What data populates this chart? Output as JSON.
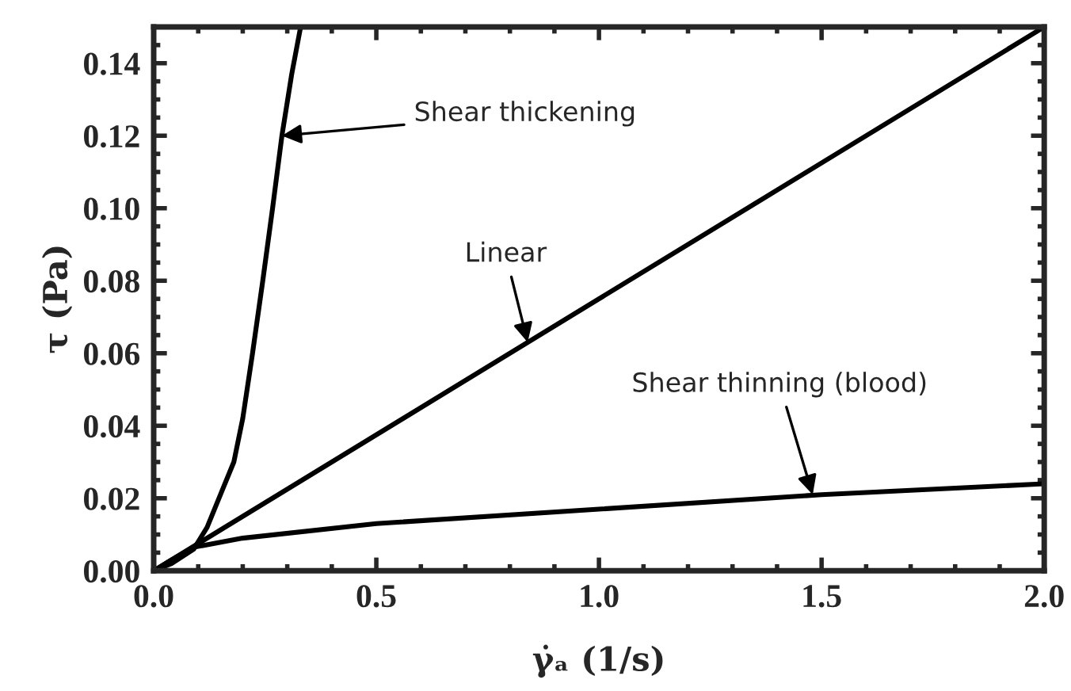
{
  "chart_data": {
    "type": "line",
    "xlabel": "γ̇ₐ (1/s)",
    "ylabel": "τ (Pa)",
    "xlim": [
      0.0,
      2.0
    ],
    "xticks": [
      {
        "value": 0,
        "label": "0.0"
      },
      {
        "value": 0.5,
        "label": "0.5"
      },
      {
        "value": 1.0,
        "label": "1.0"
      },
      {
        "value": 1.5,
        "label": "1.5"
      },
      {
        "value": 2.0,
        "label": "2.0"
      }
    ],
    "ylim": [
      0.0,
      0.15
    ],
    "yticks": [
      {
        "value": 0,
        "label": "0.00"
      },
      {
        "value": 0.02,
        "label": "0.02"
      },
      {
        "value": 0.04,
        "label": "0.04"
      },
      {
        "value": 0.06,
        "label": "0.06"
      },
      {
        "value": 0.08,
        "label": "0.08"
      },
      {
        "value": 0.1,
        "label": "0.10"
      },
      {
        "value": 0.12,
        "label": "0.12"
      },
      {
        "value": 0.14,
        "label": "0.14"
      }
    ],
    "grid": false,
    "legend": false,
    "marker": "none",
    "line_style": "solid",
    "series": [
      {
        "color": "#000000",
        "x": [
          0.0,
          0.04,
          0.09,
          0.12,
          0.15,
          0.18,
          0.2,
          0.222,
          0.245,
          0.267,
          0.288,
          0.31,
          0.33
        ],
        "values": [
          0.0,
          0.002,
          0.006,
          0.012,
          0.021,
          0.03,
          0.042,
          0.06,
          0.08,
          0.1,
          0.12,
          0.137,
          0.15
        ]
      },
      {
        "color": "#000000",
        "x": [
          0.0,
          1.0,
          2.0
        ],
        "values": [
          0.0,
          0.075,
          0.15
        ]
      },
      {
        "color": "#000000",
        "x": [
          0.0,
          0.04,
          0.09,
          0.2,
          0.5,
          1.0,
          1.5,
          2.0
        ],
        "values": [
          0.0,
          0.003,
          0.0065,
          0.009,
          0.013,
          0.017,
          0.021,
          0.024
        ]
      }
    ],
    "annotations": [
      {
        "text": "Shear thickening",
        "x": 0.288,
        "y": 0.12
      },
      {
        "text": "Linear",
        "x": 0.84,
        "y": 0.063
      },
      {
        "text": "Shear thinning (blood)",
        "x": 1.48,
        "y": 0.021
      }
    ]
  }
}
